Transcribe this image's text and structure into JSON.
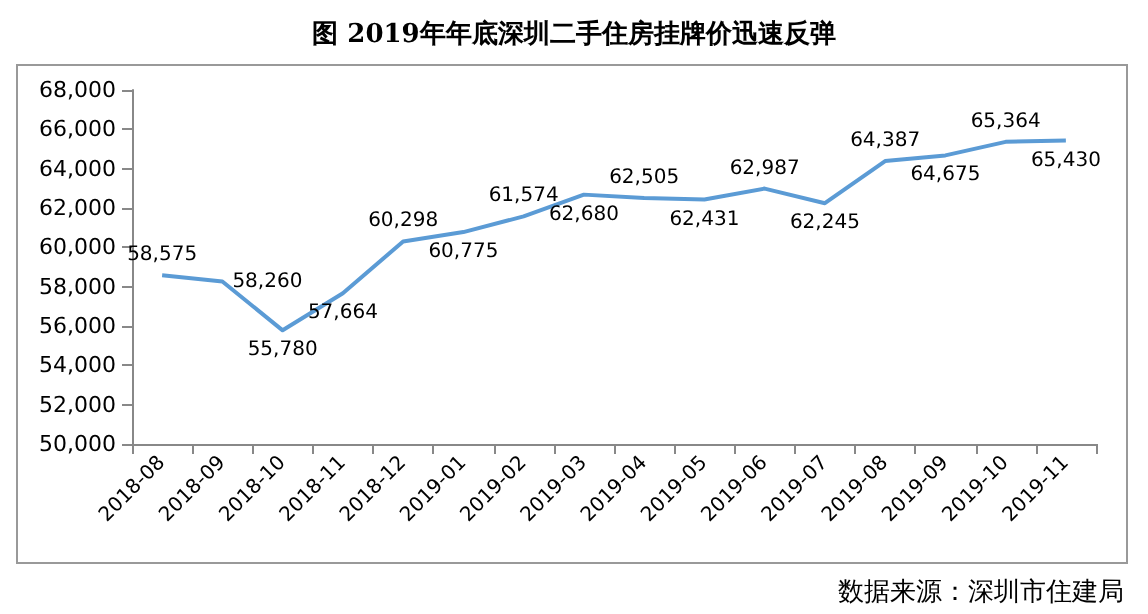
{
  "chart_data": {
    "type": "line",
    "title": "图 2019年年底深圳二手住房挂牌价迅速反弹",
    "categories": [
      "2018-08",
      "2018-09",
      "2018-10",
      "2018-11",
      "2018-12",
      "2019-01",
      "2019-02",
      "2019-03",
      "2019-04",
      "2019-05",
      "2019-06",
      "2019-07",
      "2019-08",
      "2019-09",
      "2019-10",
      "2019-11"
    ],
    "series": [
      {
        "color": "#5b9bd5",
        "values": [
          58575,
          58260,
          55780,
          57664,
          60298,
          60775,
          61574,
          62680,
          62505,
          62431,
          62987,
          62245,
          64387,
          64675,
          65364,
          65430
        ],
        "value_labels": [
          "58,575",
          "58,260",
          "55,780",
          "57,664",
          "60,298",
          "60,775",
          "61,574",
          "62,680",
          "62,505",
          "62,431",
          "62,987",
          "62,245",
          "64,387",
          "64,675",
          "65,364",
          "65,430"
        ]
      }
    ],
    "ylim": [
      50000,
      68000
    ],
    "yticks": [
      {
        "value": 50000,
        "label": "50,000"
      },
      {
        "value": 52000,
        "label": "52,000"
      },
      {
        "value": 54000,
        "label": "54,000"
      },
      {
        "value": 56000,
        "label": "56,000"
      },
      {
        "value": 58000,
        "label": "58,000"
      },
      {
        "value": 60000,
        "label": "60,000"
      },
      {
        "value": 62000,
        "label": "62,000"
      },
      {
        "value": 64000,
        "label": "64,000"
      },
      {
        "value": 66000,
        "label": "66,000"
      },
      {
        "value": 68000,
        "label": "68,000"
      }
    ],
    "grid": false,
    "marker": "none",
    "line_style": "solid",
    "annotations": [
      "数据来源：深圳市住建局"
    ]
  }
}
